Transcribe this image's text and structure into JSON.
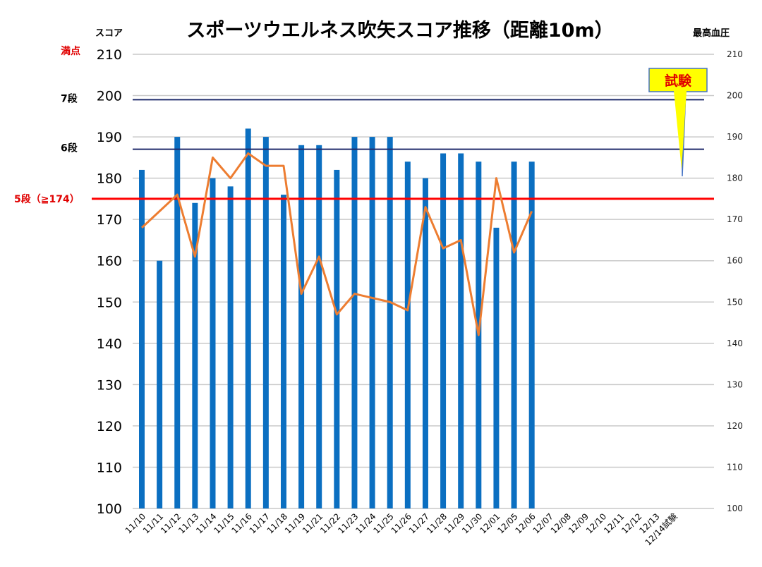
{
  "chart_data": {
    "type": "bar",
    "title": "スポーツウエルネス吹矢スコア推移（距離10m）",
    "ylabel_left": "スコア",
    "ylabel_right": "最高血圧",
    "top_label": "満点",
    "ylim_left": [
      100,
      210
    ],
    "ylim_right": [
      100,
      210
    ],
    "yticks_left": [
      "100",
      "110",
      "120",
      "130",
      "140",
      "150",
      "160",
      "170",
      "180",
      "190",
      "200",
      "210"
    ],
    "yticks_right": [
      "100",
      "110",
      "120",
      "130",
      "140",
      "150",
      "160",
      "170",
      "180",
      "190",
      "200",
      "210"
    ],
    "grid": true,
    "categories": [
      "11/10",
      "11/11",
      "11/12",
      "11/13",
      "11/14",
      "11/15",
      "11/16",
      "11/17",
      "11/18",
      "11/19",
      "11/21",
      "11/22",
      "11/23",
      "11/24",
      "11/25",
      "11/26",
      "11/27",
      "11/28",
      "11/29",
      "11/30",
      "12/01",
      "12/05",
      "12/06",
      "12/07",
      "12/08",
      "12/09",
      "12/10",
      "12/11",
      "12/12",
      "12/13",
      "12/14試験"
    ],
    "series": [
      {
        "type": "bar",
        "axis": "left",
        "color": "#0b6fc1",
        "values": [
          182,
          160,
          190,
          174,
          180,
          178,
          192,
          190,
          176,
          188,
          188,
          182,
          190,
          190,
          190,
          184,
          180,
          186,
          186,
          184,
          168,
          184,
          184,
          null,
          null,
          null,
          null,
          null,
          null,
          null,
          null
        ]
      },
      {
        "type": "line",
        "axis": "right",
        "color": "#ed7d31",
        "values": [
          168,
          172,
          176,
          161,
          185,
          180,
          186,
          183,
          183,
          152,
          161,
          147,
          152,
          151,
          150,
          148,
          173,
          163,
          165,
          142,
          180,
          162,
          172,
          null,
          null,
          null,
          null,
          null,
          null,
          null,
          null
        ]
      }
    ],
    "reference_lines": [
      {
        "label": "7段",
        "value": 199,
        "color": "#1f2a6b",
        "label_color": "#000000"
      },
      {
        "label": "6段",
        "value": 187,
        "color": "#1f2a6b",
        "label_color": "#000000"
      },
      {
        "label": "5段（≧174）",
        "value": 175,
        "color": "#ff0000",
        "label_color": "#e00000"
      }
    ],
    "callout": {
      "text": "試験",
      "fill": "#ffff00",
      "border": "#4472c4"
    }
  }
}
